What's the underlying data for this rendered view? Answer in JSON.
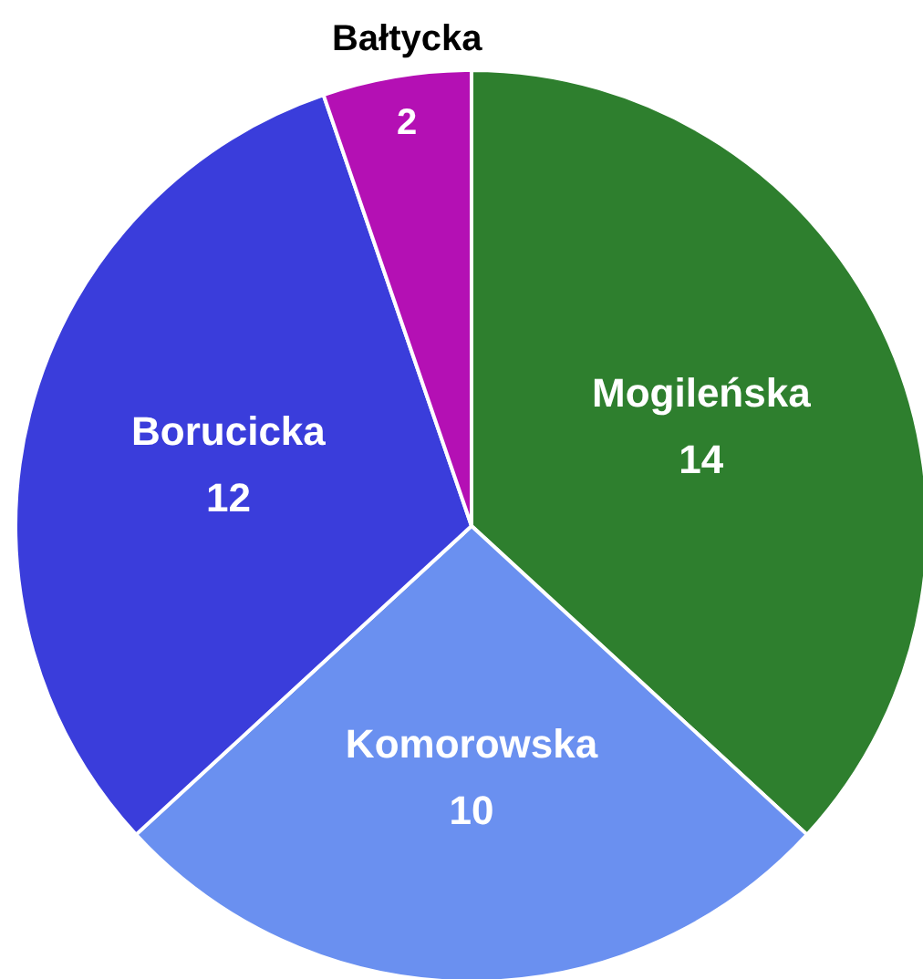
{
  "chart_data": {
    "type": "pie",
    "categories": [
      "Mogileńska",
      "Komorowska",
      "Borucicka",
      "Bałtycka"
    ],
    "values": [
      14,
      10,
      12,
      2
    ],
    "colors": [
      "#2e7f2e",
      "#6a90f0",
      "#3a3ddb",
      "#b410b4"
    ],
    "data_labels": true
  }
}
